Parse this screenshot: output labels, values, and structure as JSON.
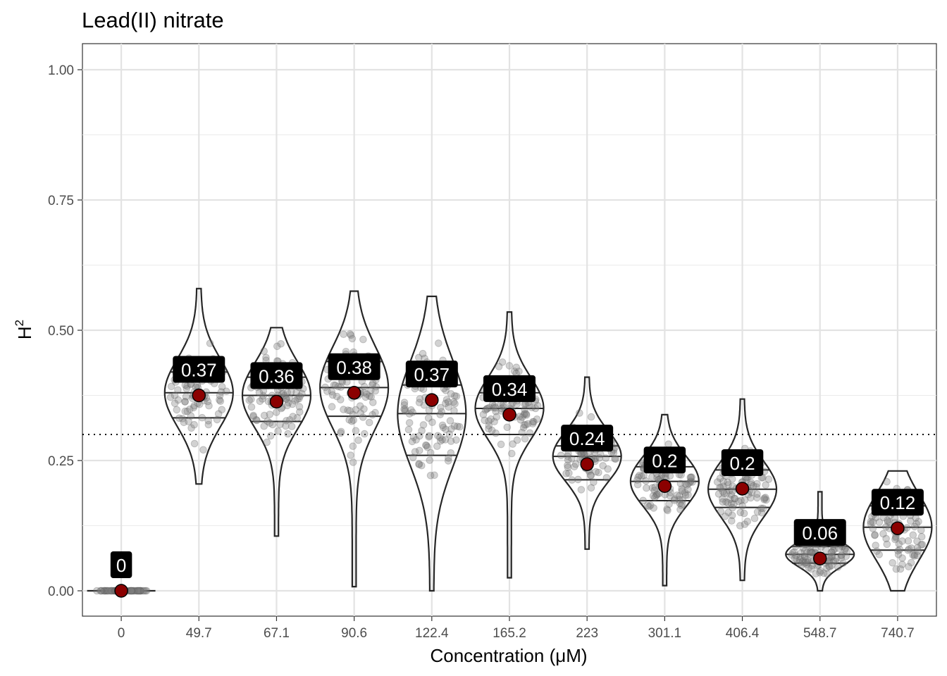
{
  "chart_data": {
    "type": "violin",
    "title": "Lead(II) nitrate",
    "xlabel": "Concentration (μM)",
    "ylabel": "H",
    "ylabel_superscript": "2",
    "ylim": [
      -0.05,
      1.05
    ],
    "yticks": [
      "0.00",
      "0.25",
      "0.50",
      "0.75",
      "1.00"
    ],
    "reference_line": 0.3,
    "grid": true,
    "colors": {
      "mean_point": "#8b0000",
      "jitter": "#7f7f7f",
      "label_bg": "#000000",
      "label_text": "#ffffff",
      "violin_stroke": "#262626",
      "reference_line": "#000000"
    },
    "categories": [
      "0",
      "49.7",
      "67.1",
      "90.6",
      "122.4",
      "165.2",
      "223",
      "301.1",
      "406.4",
      "548.7",
      "740.7"
    ],
    "means": [
      0,
      0.375,
      0.363,
      0.38,
      0.366,
      0.338,
      0.243,
      0.201,
      0.196,
      0.062,
      0.12
    ],
    "labels": [
      "0",
      "0.37",
      "0.36",
      "0.38",
      "0.37",
      "0.34",
      "0.24",
      "0.2",
      "0.2",
      "0.06",
      "0.12"
    ],
    "quartiles": [
      [
        0,
        0,
        0
      ],
      [
        0.332,
        0.38,
        0.42
      ],
      [
        0.325,
        0.375,
        0.41
      ],
      [
        0.335,
        0.39,
        0.44
      ],
      [
        0.26,
        0.34,
        0.395
      ],
      [
        0.3,
        0.35,
        0.38
      ],
      [
        0.213,
        0.258,
        0.278
      ],
      [
        0.173,
        0.21,
        0.238
      ],
      [
        0.16,
        0.195,
        0.232
      ],
      [
        0.053,
        0.07,
        0.085
      ],
      [
        0.078,
        0.122,
        0.163
      ]
    ],
    "ranges": [
      [
        0,
        0
      ],
      [
        0.205,
        0.58
      ],
      [
        0.105,
        0.505
      ],
      [
        0.008,
        0.575
      ],
      [
        0,
        0.565
      ],
      [
        0.025,
        0.535
      ],
      [
        0.08,
        0.41
      ],
      [
        0.01,
        0.338
      ],
      [
        0.02,
        0.368
      ],
      [
        0,
        0.19
      ],
      [
        0,
        0.23
      ]
    ]
  }
}
